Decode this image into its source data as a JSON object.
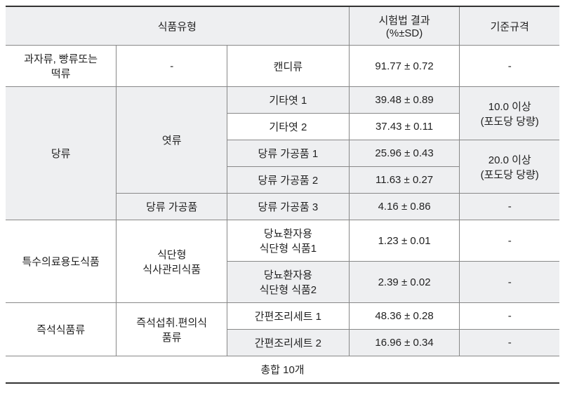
{
  "headers": {
    "food_type": "식품유형",
    "result": "시험법 결과",
    "result_unit": "(%±SD)",
    "standard": "기준규격"
  },
  "rows": {
    "r1": {
      "cat1": "과자류, 빵류또는\n떡류",
      "cat2": "-",
      "cat3": "캔디류",
      "result": "91.77  ± 0.72",
      "standard": "-"
    },
    "r2": {
      "cat1": "당류",
      "cat2": "엿류",
      "cat3": "기타엿 1",
      "result": "39.48 ± 0.89",
      "standard": "10.0 이상\n(포도당 당량)"
    },
    "r3": {
      "cat3": "기타엿 2",
      "result": "37.43 ± 0.11"
    },
    "r4": {
      "cat3": "당류 가공품 1",
      "result": "25.96 ± 0.43",
      "standard": "20.0 이상\n(포도당 당량)"
    },
    "r5": {
      "cat3": "당류 가공품 2",
      "result": "11.63 ± 0.27"
    },
    "r6": {
      "cat2": "당류 가공품",
      "cat3": "당류 가공품 3",
      "result": "4.16 ± 0.86",
      "standard": "-"
    },
    "r7": {
      "cat1": "특수의료용도식품",
      "cat2": "식단형\n식사관리식품",
      "cat3": "당뇨환자용\n식단형 식품1",
      "result": "1.23 ± 0.01",
      "standard": "-"
    },
    "r8": {
      "cat3": "당뇨환자용\n식단형 식품2",
      "result": "2.39 ± 0.02",
      "standard": "-"
    },
    "r9": {
      "cat1": "즉석식품류",
      "cat2": "즉석섭취.편의식\n품류",
      "cat3": "간편조리세트 1",
      "result": "48.36 ± 0.28",
      "standard": "-"
    },
    "r10": {
      "cat3": "간편조리세트 2",
      "result": "16.96 ± 0.34",
      "standard": "-"
    }
  },
  "total": "총합 10개",
  "styling": {
    "header_bg": "#eeeff1",
    "alt_bg": "#eeeff1",
    "border_color": "#888888",
    "rule_color": "#333333",
    "font_size": 15,
    "text_color": "#222222"
  }
}
